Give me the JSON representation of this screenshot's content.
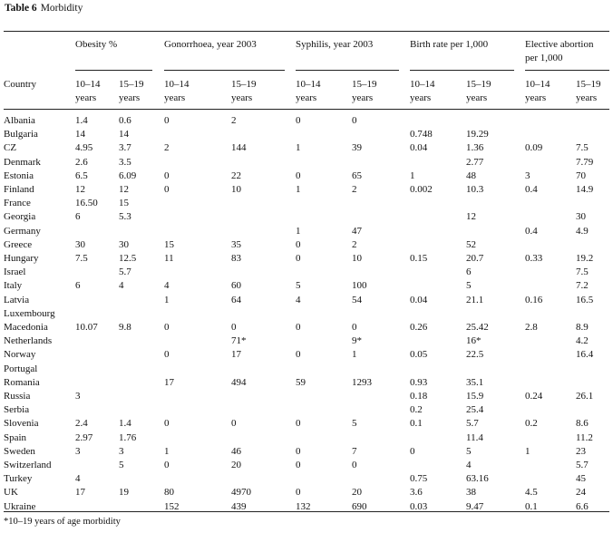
{
  "caption": {
    "label": "Table 6",
    "title": "Morbidity"
  },
  "header": {
    "country": "Country",
    "groups": [
      {
        "title": "Obesity %",
        "title2": ""
      },
      {
        "title": "Gonorrhoea, year 2003",
        "title2": ""
      },
      {
        "title": "Syphilis, year 2003",
        "title2": ""
      },
      {
        "title": "Birth rate per 1,000",
        "title2": ""
      },
      {
        "title": "Elective abortion",
        "title2": "per 1,000"
      }
    ],
    "sub": [
      [
        "10–14",
        "years"
      ],
      [
        "15–19",
        "years"
      ],
      [
        "10–14",
        "years"
      ],
      [
        "15–19",
        "years"
      ],
      [
        "10–14",
        "years"
      ],
      [
        "15–19",
        "years"
      ],
      [
        "10–14",
        "years"
      ],
      [
        "15–19",
        "years"
      ],
      [
        "10–14",
        "years"
      ],
      [
        "15–19",
        "years"
      ]
    ]
  },
  "rows": [
    [
      "Albania",
      "1.4",
      "0.6",
      "0",
      "2",
      "0",
      "0",
      "",
      "",
      "",
      ""
    ],
    [
      "Bulgaria",
      "14",
      "14",
      "",
      "",
      "",
      "",
      "0.748",
      "19.29",
      "",
      ""
    ],
    [
      "CZ",
      "4.95",
      "3.7",
      "2",
      "144",
      "1",
      "39",
      "0.04",
      "1.36",
      "0.09",
      "7.5"
    ],
    [
      "Denmark",
      "2.6",
      "3.5",
      "",
      "",
      "",
      "",
      "",
      "2.77",
      "",
      "7.79"
    ],
    [
      "Estonia",
      "6.5",
      "6.09",
      "0",
      "22",
      "0",
      "65",
      "1",
      "48",
      "3",
      "70"
    ],
    [
      "Finland",
      "12",
      "12",
      "0",
      "10",
      "1",
      "2",
      "0.002",
      "10.3",
      "0.4",
      "14.9"
    ],
    [
      "France",
      "16.50",
      "15",
      "",
      "",
      "",
      "",
      "",
      "",
      "",
      ""
    ],
    [
      "Georgia",
      "6",
      "5.3",
      "",
      "",
      "",
      "",
      "",
      "12",
      "",
      "30"
    ],
    [
      "Germany",
      "",
      "",
      "",
      "",
      "1",
      "47",
      "",
      "",
      "0.4",
      "4.9"
    ],
    [
      "Greece",
      "30",
      "30",
      "15",
      "35",
      "0",
      "2",
      "",
      "52",
      "",
      ""
    ],
    [
      "Hungary",
      "7.5",
      "12.5",
      "11",
      "83",
      "0",
      "10",
      "0.15",
      "20.7",
      "0.33",
      "19.2"
    ],
    [
      "Israel",
      "",
      "5.7",
      "",
      "",
      "",
      "",
      "",
      "6",
      "",
      "7.5"
    ],
    [
      "Italy",
      "6",
      "4",
      "4",
      "60",
      "5",
      "100",
      "",
      "5",
      "",
      "7.2"
    ],
    [
      "Latvia",
      "",
      "",
      "1",
      "64",
      "4",
      "54",
      "0.04",
      "21.1",
      "0.16",
      "16.5"
    ],
    [
      "Luxembourg",
      "",
      "",
      "",
      "",
      "",
      "",
      "",
      "",
      "",
      ""
    ],
    [
      "Macedonia",
      "10.07",
      "9.8",
      "0",
      "0",
      "0",
      "0",
      "0.26",
      "25.42",
      "2.8",
      "8.9"
    ],
    [
      "Netherlands",
      "",
      "",
      "",
      "71*",
      "",
      "9*",
      "",
      "16*",
      "",
      "4.2"
    ],
    [
      "Norway",
      "",
      "",
      "0",
      "17",
      "0",
      "1",
      "0.05",
      "22.5",
      "",
      "16.4"
    ],
    [
      "Portugal",
      "",
      "",
      "",
      "",
      "",
      "",
      "",
      "",
      "",
      ""
    ],
    [
      "Romania",
      "",
      "",
      "17",
      "494",
      "59",
      "1293",
      "0.93",
      "35.1",
      "",
      ""
    ],
    [
      "Russia",
      "3",
      "",
      "",
      "",
      "",
      "",
      "0.18",
      "15.9",
      "0.24",
      "26.1"
    ],
    [
      "Serbia",
      "",
      "",
      "",
      "",
      "",
      "",
      "0.2",
      "25.4",
      "",
      ""
    ],
    [
      "Slovenia",
      "2.4",
      "1.4",
      "0",
      "0",
      "0",
      "5",
      "0.1",
      "5.7",
      "0.2",
      "8.6"
    ],
    [
      "Spain",
      "2.97",
      "1.76",
      "",
      "",
      "",
      "",
      "",
      "11.4",
      "",
      "11.2"
    ],
    [
      "Sweden",
      "3",
      "3",
      "1",
      "46",
      "0",
      "7",
      "0",
      "5",
      "1",
      "23"
    ],
    [
      "Switzerland",
      "",
      "5",
      "0",
      "20",
      "0",
      "0",
      "",
      "4",
      "",
      "5.7"
    ],
    [
      "Turkey",
      "4",
      "",
      "",
      "",
      "",
      "",
      "0.75",
      "63.16",
      "",
      "45"
    ],
    [
      "UK",
      "17",
      "19",
      "80",
      "4970",
      "0",
      "20",
      "3.6",
      "38",
      "4.5",
      "24"
    ],
    [
      "Ukraine",
      "",
      "",
      "152",
      "439",
      "132",
      "690",
      "0.03",
      "9.47",
      "0.1",
      "6.6"
    ]
  ],
  "footnote": "*10–19 years of age morbidity"
}
